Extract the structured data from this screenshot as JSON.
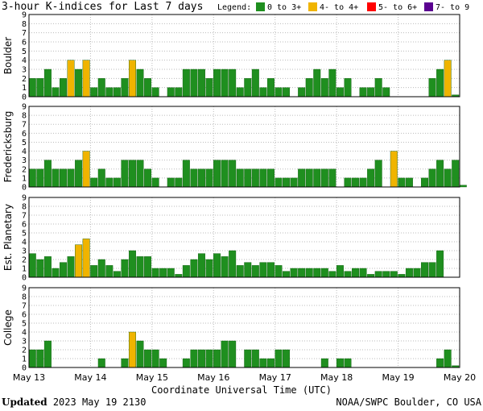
{
  "title": "3-hour K-indices for Last 7 days",
  "legend": {
    "label": "Legend:",
    "items": [
      {
        "label": "0 to 3+",
        "color": "#1f8f1f"
      },
      {
        "label": "4- to 4+",
        "color": "#f0b400"
      },
      {
        "label": "5- to 6+",
        "color": "#ff0000"
      },
      {
        "label": "7- to 9",
        "color": "#5a0090"
      }
    ]
  },
  "footer": {
    "updated_label": "Updated",
    "updated_value": "2023 May 19 2130",
    "source": "NOAA/SWPC Boulder, CO USA"
  },
  "chart_data": {
    "type": "bar",
    "xlabel": "Coordinate Universal Time (UTC)",
    "x_tick_labels": [
      "May 13",
      "May 14",
      "May 15",
      "May 16",
      "May 17",
      "May 18",
      "May 19",
      "May 20"
    ],
    "ylim": [
      0,
      9
    ],
    "y_ticks": [
      0,
      1,
      2,
      3,
      4,
      5,
      6,
      7,
      8,
      9
    ],
    "panels": [
      {
        "name": "Boulder",
        "values": [
          2,
          2,
          3,
          1,
          2,
          4,
          3,
          4,
          1,
          2,
          1,
          1,
          2,
          4,
          3,
          2,
          1,
          0,
          1,
          1,
          3,
          3,
          3,
          2,
          3,
          3,
          3,
          1,
          2,
          3,
          1,
          2,
          1,
          1,
          0,
          1,
          2,
          3,
          2,
          3,
          1,
          2,
          0,
          1,
          1,
          2,
          1,
          0,
          0,
          0,
          0,
          0,
          2,
          3,
          4,
          0.2
        ]
      },
      {
        "name": "Fredericksburg",
        "values": [
          2,
          2,
          3,
          2,
          2,
          2,
          3,
          4,
          1,
          2,
          1,
          1,
          3,
          3,
          3,
          2,
          1,
          0,
          1,
          1,
          3,
          2,
          2,
          2,
          3,
          3,
          3,
          2,
          2,
          2,
          2,
          2,
          1,
          1,
          1,
          2,
          2,
          2,
          2,
          2,
          0,
          1,
          1,
          1,
          2,
          3,
          0,
          4,
          1,
          1,
          0,
          1,
          2,
          3,
          2,
          3,
          0.2
        ]
      },
      {
        "name": "Est. Planetary",
        "values": [
          2.67,
          2,
          2.33,
          1,
          1.67,
          2.33,
          3.67,
          4.33,
          1.33,
          2,
          1.33,
          0.67,
          2,
          3,
          2.33,
          2.33,
          1,
          1,
          1,
          0.33,
          1.33,
          2,
          2.67,
          2,
          2.67,
          2.33,
          3,
          1.33,
          1.67,
          1.33,
          1.67,
          1.67,
          1.33,
          0.67,
          1,
          1,
          1,
          1,
          1,
          0.67,
          1.33,
          0.67,
          1,
          1,
          0.33,
          0.67,
          0.67,
          0.67,
          0.33,
          1,
          1,
          1.67,
          1.67,
          3
        ]
      },
      {
        "name": "College",
        "values": [
          2,
          2,
          3,
          0,
          0,
          0,
          0,
          0,
          0,
          1,
          0,
          0,
          1,
          4,
          3,
          2,
          2,
          1,
          0,
          0,
          1,
          2,
          2,
          2,
          2,
          3,
          3,
          0,
          2,
          2,
          1,
          1,
          2,
          2,
          0,
          0,
          0,
          0,
          1,
          0,
          1,
          1,
          0,
          0,
          0,
          0,
          0,
          0,
          0,
          0,
          0,
          0,
          0,
          1,
          2,
          0.2
        ]
      }
    ]
  }
}
